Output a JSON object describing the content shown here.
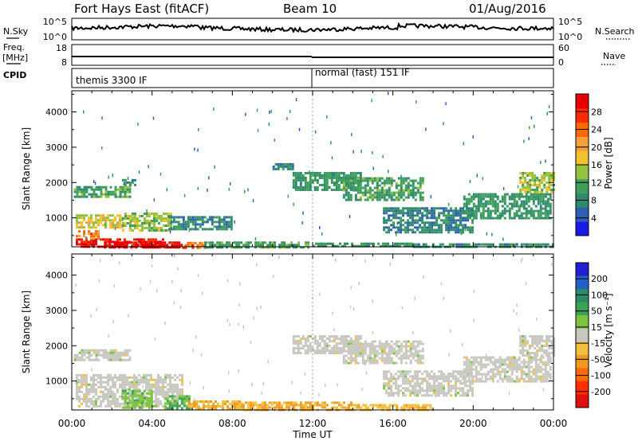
{
  "header": {
    "station": "Fort Hays East (fitACF)",
    "beam": "Beam 10",
    "date": "01/Aug/2016"
  },
  "top_panels": {
    "nsky_label": "N.Sky",
    "nsky_ticks": [
      "10^5",
      "10^0"
    ],
    "nsearch_label": "N.Search",
    "nsearch_ticks": [
      "10^5",
      "10^0"
    ],
    "freq_label": "Freq.",
    "freq_unit": "[MHz]",
    "freq_ticks": [
      "18",
      "8"
    ],
    "nave_label": "Nave",
    "nave_ticks": [
      "60",
      "0"
    ],
    "cpid_label": "CPID",
    "cpid_segments": [
      {
        "label": "themis 3300 IF",
        "start_hour": 0
      },
      {
        "label": "normal (fast) 151 IF",
        "start_hour": 12
      }
    ]
  },
  "x_axis": {
    "title": "Time UT",
    "tick_labels": [
      "00:00",
      "04:00",
      "08:00",
      "12:00",
      "16:00",
      "20:00",
      "00:00"
    ],
    "range_hours": [
      0,
      24
    ]
  },
  "power_panel": {
    "ylabel": "Slant Range [km]",
    "y_ticks": [
      "1000",
      "2000",
      "3000",
      "4000"
    ],
    "colorbar_label": "Power [dB]",
    "colorbar_ticks": [
      "4",
      "8",
      "12",
      "16",
      "20",
      "24",
      "28"
    ],
    "colors": [
      "#1a1ae6",
      "#2d5fb5",
      "#2f8a6d",
      "#3f9f5a",
      "#94c13e",
      "#f2c230",
      "#f4a13a",
      "#ff6a00",
      "#ff2a00",
      "#e80000"
    ]
  },
  "velocity_panel": {
    "ylabel": "Slant Range [km]",
    "y_ticks": [
      "1000",
      "2000",
      "3000",
      "4000"
    ],
    "colorbar_label": "Velocity [m s⁻¹]",
    "colorbar_ticks": [
      "200",
      "100",
      "50",
      "15",
      "-15",
      "-50",
      "-100",
      "-200"
    ],
    "colors": [
      "#2020d0",
      "#2060c8",
      "#2c8a6a",
      "#3aa352",
      "#7cc440",
      "#c8c8c0",
      "#f2c040",
      "#f29a20",
      "#ff6a00",
      "#ff3000",
      "#e01010"
    ]
  },
  "chart_data": [
    {
      "type": "heatmap",
      "title": "Power",
      "xlabel": "Time UT",
      "ylabel": "Slant Range [km]",
      "xlim": [
        0,
        24
      ],
      "ylim": [
        180,
        4600
      ],
      "color_label": "Power [dB]",
      "color_range": [
        0,
        30
      ],
      "regions": [
        {
          "t0": 0.2,
          "t1": 4.6,
          "r0": 180,
          "r1": 420,
          "value": 27
        },
        {
          "t0": 1.6,
          "t1": 5.5,
          "r0": 180,
          "r1": 330,
          "value": 29
        },
        {
          "t0": 5.5,
          "t1": 6.6,
          "r0": 180,
          "r1": 320,
          "value": 22
        },
        {
          "t0": 6.6,
          "t1": 11.8,
          "r0": 180,
          "r1": 330,
          "value": 10
        },
        {
          "t0": 12.0,
          "t1": 17.0,
          "r0": 180,
          "r1": 300,
          "value": 9
        },
        {
          "t0": 17.0,
          "t1": 24.0,
          "r0": 180,
          "r1": 280,
          "value": 8
        },
        {
          "t0": 0.2,
          "t1": 1.3,
          "r0": 400,
          "r1": 650,
          "value": 22
        },
        {
          "t0": 0.2,
          "t1": 2.5,
          "r0": 700,
          "r1": 1100,
          "value": 16
        },
        {
          "t0": 2.5,
          "t1": 5.0,
          "r0": 650,
          "r1": 1150,
          "value": 13
        },
        {
          "t0": 4.8,
          "t1": 8.0,
          "r0": 650,
          "r1": 1050,
          "value": 8
        },
        {
          "t0": 0.1,
          "t1": 2.9,
          "r0": 1600,
          "r1": 1900,
          "value": 10
        },
        {
          "t0": 2.5,
          "t1": 3.1,
          "r0": 1950,
          "r1": 2100,
          "value": 8
        },
        {
          "t0": 10.0,
          "t1": 11.0,
          "r0": 2350,
          "r1": 2550,
          "value": 8
        },
        {
          "t0": 11.0,
          "t1": 14.4,
          "r0": 1800,
          "r1": 2300,
          "value": 9
        },
        {
          "t0": 13.5,
          "t1": 17.5,
          "r0": 1500,
          "r1": 2150,
          "value": 10
        },
        {
          "t0": 15.5,
          "t1": 20.0,
          "r0": 600,
          "r1": 1300,
          "value": 7
        },
        {
          "t0": 19.5,
          "t1": 23.9,
          "r0": 1000,
          "r1": 1700,
          "value": 9
        },
        {
          "t0": 22.3,
          "t1": 24.0,
          "r0": 1700,
          "r1": 2300,
          "value": 14
        }
      ]
    },
    {
      "type": "heatmap",
      "title": "Velocity",
      "xlabel": "Time UT",
      "ylabel": "Slant Range [km]",
      "xlim": [
        0,
        24
      ],
      "ylim": [
        180,
        4600
      ],
      "color_label": "Velocity [m s⁻¹]",
      "color_range": [
        -200,
        200
      ],
      "regions": [
        {
          "t0": 0.2,
          "t1": 5.5,
          "r0": 300,
          "r1": 1200,
          "value": 0
        },
        {
          "t0": 0.1,
          "t1": 2.9,
          "r0": 1600,
          "r1": 1900,
          "value": 0
        },
        {
          "t0": 2.5,
          "t1": 4.0,
          "r0": 250,
          "r1": 750,
          "value": 40
        },
        {
          "t0": 4.6,
          "t1": 5.8,
          "r0": 200,
          "r1": 600,
          "value": 60
        },
        {
          "t0": 5.8,
          "t1": 8.5,
          "r0": 180,
          "r1": 450,
          "value": -50
        },
        {
          "t0": 8.5,
          "t1": 14.0,
          "r0": 180,
          "r1": 420,
          "value": -60
        },
        {
          "t0": 14.0,
          "t1": 18.0,
          "r0": 180,
          "r1": 350,
          "value": -40
        },
        {
          "t0": 11.0,
          "t1": 14.4,
          "r0": 1800,
          "r1": 2300,
          "value": 0
        },
        {
          "t0": 13.5,
          "t1": 17.5,
          "r0": 1500,
          "r1": 2150,
          "value": 0
        },
        {
          "t0": 15.5,
          "t1": 20.0,
          "r0": 600,
          "r1": 1300,
          "value": 0
        },
        {
          "t0": 19.5,
          "t1": 23.9,
          "r0": 1000,
          "r1": 1700,
          "value": 0
        },
        {
          "t0": 22.3,
          "t1": 24.0,
          "r0": 1700,
          "r1": 2300,
          "value": 0
        }
      ]
    }
  ]
}
